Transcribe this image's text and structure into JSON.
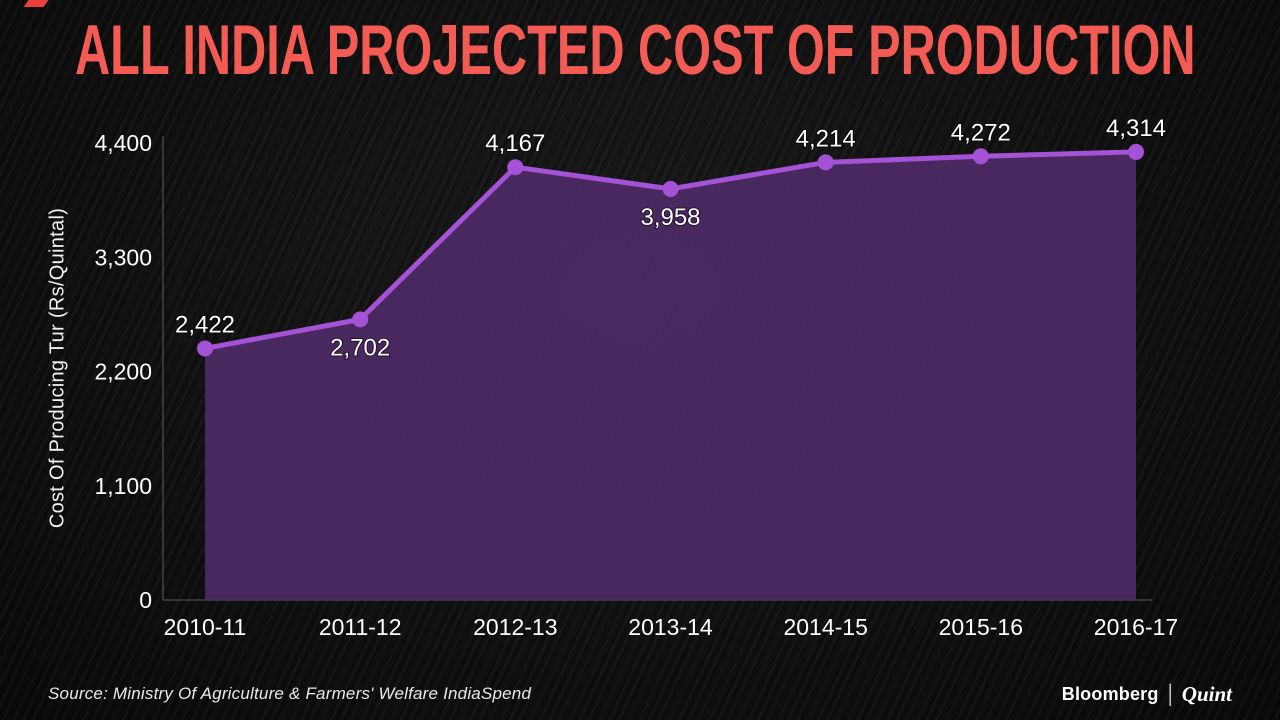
{
  "title": "ALL INDIA PROJECTED COST OF PRODUCTION",
  "source": "Source: Ministry Of Agriculture & Farmers' Welfare IndiaSpend",
  "branding": {
    "bloomberg": "Bloomberg",
    "separator": "|",
    "quint": "Quint"
  },
  "chart_data": {
    "type": "area",
    "title": "ALL INDIA PROJECTED COST OF PRODUCTION",
    "ylabel": "Cost Of Producing Tur (Rs/Quintal)",
    "xlabel": "",
    "categories": [
      "2010-11",
      "2011-12",
      "2012-13",
      "2013-14",
      "2014-15",
      "2015-16",
      "2016-17"
    ],
    "values": [
      2422,
      2702,
      4167,
      3958,
      4214,
      4272,
      4314
    ],
    "labels": [
      "2,422",
      "2,702",
      "4,167",
      "3,958",
      "4,214",
      "4,272",
      "4,314"
    ],
    "label_positions": [
      "above",
      "below",
      "above",
      "below",
      "above",
      "above",
      "above"
    ],
    "yticks": [
      0,
      1100,
      2200,
      3300,
      4400
    ],
    "ytick_labels": [
      "0",
      "1,100",
      "2,200",
      "3,300",
      "4,400"
    ],
    "ylim": [
      0,
      4400
    ],
    "grid": false,
    "legend": false,
    "colors": {
      "line": "#a452d6",
      "fill": "#4d2a66",
      "title": "#f25c54",
      "background": "#111111",
      "text": "#ffffff",
      "axis": "#9a9a9a"
    }
  }
}
